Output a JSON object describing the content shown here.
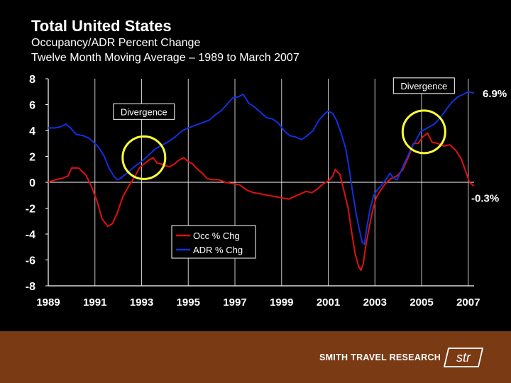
{
  "title": "Total United States",
  "subtitle_line1": "Occupancy/ADR Percent Change",
  "subtitle_line2": "Twelve Month Moving Average – 1989 to March 2007",
  "footer": {
    "company": "SMITH TRAVEL RESEARCH",
    "logo_text": "str",
    "background_color": "#7a3a14"
  },
  "chart_data": {
    "type": "line",
    "title": "Total United States",
    "xlabel": "",
    "ylabel": "",
    "xlim": [
      1989,
      2007.25
    ],
    "ylim": [
      -8,
      8
    ],
    "x_ticks": [
      "1989",
      "1991",
      "1993",
      "1995",
      "1997",
      "1999",
      "2001",
      "2003",
      "2005",
      "2007"
    ],
    "y_ticks": [
      "8",
      "6",
      "4",
      "2",
      "0",
      "-2",
      "-4",
      "-6",
      "-8"
    ],
    "grid": "vertical",
    "legend_position": "lower-left",
    "series": [
      {
        "name": "Occ % Chg",
        "color": "#e01010",
        "points": [
          [
            1989.0,
            0.0
          ],
          [
            1989.3,
            0.2
          ],
          [
            1989.6,
            0.3
          ],
          [
            1989.85,
            0.5
          ],
          [
            1990.0,
            1.1
          ],
          [
            1990.3,
            1.1
          ],
          [
            1990.6,
            0.6
          ],
          [
            1990.85,
            -0.3
          ],
          [
            1991.1,
            -1.5
          ],
          [
            1991.3,
            -2.8
          ],
          [
            1991.55,
            -3.4
          ],
          [
            1991.75,
            -3.2
          ],
          [
            1991.95,
            -2.4
          ],
          [
            1992.2,
            -1.1
          ],
          [
            1992.45,
            -0.3
          ],
          [
            1992.7,
            0.4
          ],
          [
            1992.9,
            1.1
          ],
          [
            1993.1,
            1.4
          ],
          [
            1993.3,
            1.7
          ],
          [
            1993.5,
            1.9
          ],
          [
            1993.65,
            1.5
          ],
          [
            1993.85,
            1.4
          ],
          [
            1994.0,
            1.3
          ],
          [
            1994.2,
            1.2
          ],
          [
            1994.4,
            1.4
          ],
          [
            1994.6,
            1.7
          ],
          [
            1994.8,
            1.9
          ],
          [
            1995.0,
            1.6
          ],
          [
            1995.2,
            1.4
          ],
          [
            1995.4,
            1.0
          ],
          [
            1995.6,
            0.7
          ],
          [
            1995.8,
            0.3
          ],
          [
            1996.0,
            0.2
          ],
          [
            1996.3,
            0.2
          ],
          [
            1996.6,
            0.0
          ],
          [
            1996.9,
            -0.1
          ],
          [
            1997.2,
            -0.2
          ],
          [
            1997.5,
            -0.6
          ],
          [
            1997.8,
            -0.8
          ],
          [
            1998.1,
            -0.9
          ],
          [
            1998.4,
            -1.0
          ],
          [
            1998.7,
            -1.1
          ],
          [
            1999.0,
            -1.2
          ],
          [
            1999.3,
            -1.3
          ],
          [
            1999.55,
            -1.1
          ],
          [
            1999.8,
            -0.9
          ],
          [
            2000.05,
            -0.7
          ],
          [
            2000.3,
            -0.8
          ],
          [
            2000.55,
            -0.5
          ],
          [
            2000.8,
            -0.1
          ],
          [
            2001.0,
            0.1
          ],
          [
            2001.2,
            0.5
          ],
          [
            2001.3,
            1.0
          ],
          [
            2001.5,
            0.6
          ],
          [
            2001.65,
            -0.5
          ],
          [
            2001.85,
            -2.0
          ],
          [
            2002.0,
            -3.8
          ],
          [
            2002.15,
            -5.5
          ],
          [
            2002.3,
            -6.5
          ],
          [
            2002.4,
            -6.8
          ],
          [
            2002.5,
            -6.3
          ],
          [
            2002.6,
            -5.0
          ],
          [
            2002.75,
            -3.5
          ],
          [
            2002.9,
            -2.2
          ],
          [
            2003.05,
            -1.2
          ],
          [
            2003.25,
            -0.6
          ],
          [
            2003.45,
            -0.1
          ],
          [
            2003.7,
            0.3
          ],
          [
            2003.95,
            0.5
          ],
          [
            2004.2,
            1.0
          ],
          [
            2004.45,
            2.0
          ],
          [
            2004.65,
            3.0
          ],
          [
            2004.85,
            3.0
          ],
          [
            2005.05,
            3.5
          ],
          [
            2005.25,
            3.8
          ],
          [
            2005.45,
            3.1
          ],
          [
            2005.7,
            3.0
          ],
          [
            2005.95,
            2.8
          ],
          [
            2006.2,
            2.9
          ],
          [
            2006.45,
            2.5
          ],
          [
            2006.7,
            1.8
          ],
          [
            2006.9,
            0.8
          ],
          [
            2007.05,
            0.0
          ],
          [
            2007.25,
            -0.3
          ]
        ]
      },
      {
        "name": "ADR % Chg",
        "color": "#1030e0",
        "points": [
          [
            1989.0,
            4.2
          ],
          [
            1989.3,
            4.2
          ],
          [
            1989.55,
            4.3
          ],
          [
            1989.75,
            4.5
          ],
          [
            1989.95,
            4.2
          ],
          [
            1990.2,
            3.7
          ],
          [
            1990.5,
            3.6
          ],
          [
            1990.75,
            3.4
          ],
          [
            1991.0,
            3.0
          ],
          [
            1991.2,
            2.6
          ],
          [
            1991.4,
            2.0
          ],
          [
            1991.6,
            1.1
          ],
          [
            1991.8,
            0.5
          ],
          [
            1991.95,
            0.2
          ],
          [
            1992.1,
            0.3
          ],
          [
            1992.3,
            0.6
          ],
          [
            1992.5,
            0.9
          ],
          [
            1992.75,
            1.3
          ],
          [
            1993.0,
            1.6
          ],
          [
            1993.3,
            2.1
          ],
          [
            1993.6,
            2.6
          ],
          [
            1993.9,
            2.9
          ],
          [
            1994.2,
            3.2
          ],
          [
            1994.5,
            3.6
          ],
          [
            1994.75,
            4.0
          ],
          [
            1995.0,
            4.2
          ],
          [
            1995.3,
            4.4
          ],
          [
            1995.6,
            4.6
          ],
          [
            1995.9,
            4.8
          ],
          [
            1996.15,
            5.2
          ],
          [
            1996.4,
            5.5
          ],
          [
            1996.65,
            6.0
          ],
          [
            1996.9,
            6.5
          ],
          [
            1997.15,
            6.6
          ],
          [
            1997.35,
            6.8
          ],
          [
            1997.6,
            6.1
          ],
          [
            1997.85,
            5.8
          ],
          [
            1998.1,
            5.4
          ],
          [
            1998.35,
            5.0
          ],
          [
            1998.6,
            4.9
          ],
          [
            1998.85,
            4.6
          ],
          [
            1999.1,
            4.0
          ],
          [
            1999.35,
            3.6
          ],
          [
            1999.6,
            3.5
          ],
          [
            1999.85,
            3.3
          ],
          [
            2000.1,
            3.6
          ],
          [
            2000.35,
            4.0
          ],
          [
            2000.6,
            4.8
          ],
          [
            2000.85,
            5.3
          ],
          [
            2001.0,
            5.5
          ],
          [
            2001.2,
            5.3
          ],
          [
            2001.35,
            4.8
          ],
          [
            2001.55,
            3.8
          ],
          [
            2001.75,
            2.6
          ],
          [
            2001.9,
            1.0
          ],
          [
            2002.05,
            -0.8
          ],
          [
            2002.2,
            -2.5
          ],
          [
            2002.35,
            -3.8
          ],
          [
            2002.45,
            -4.6
          ],
          [
            2002.55,
            -4.8
          ],
          [
            2002.65,
            -3.5
          ],
          [
            2002.8,
            -2.0
          ],
          [
            2002.95,
            -1.0
          ],
          [
            2003.1,
            -0.6
          ],
          [
            2003.3,
            -0.2
          ],
          [
            2003.5,
            0.3
          ],
          [
            2003.65,
            0.7
          ],
          [
            2003.8,
            0.3
          ],
          [
            2003.95,
            0.2
          ],
          [
            2004.15,
            1.0
          ],
          [
            2004.35,
            1.8
          ],
          [
            2004.55,
            2.6
          ],
          [
            2004.75,
            3.2
          ],
          [
            2004.95,
            3.9
          ],
          [
            2005.15,
            4.1
          ],
          [
            2005.35,
            4.3
          ],
          [
            2005.55,
            4.5
          ],
          [
            2005.8,
            5.0
          ],
          [
            2006.05,
            5.6
          ],
          [
            2006.3,
            6.2
          ],
          [
            2006.55,
            6.6
          ],
          [
            2006.8,
            6.8
          ],
          [
            2007.0,
            7.0
          ],
          [
            2007.25,
            6.9
          ]
        ]
      }
    ],
    "annotations": [
      {
        "text": "Divergence",
        "x": 1993.1,
        "y": 1.9
      },
      {
        "text": "Divergence",
        "x": 2005.1,
        "y": 3.9
      }
    ],
    "end_labels": [
      {
        "series": "ADR % Chg",
        "text": "6.9%"
      },
      {
        "series": "Occ % Chg",
        "text": "-0.3%"
      }
    ]
  }
}
